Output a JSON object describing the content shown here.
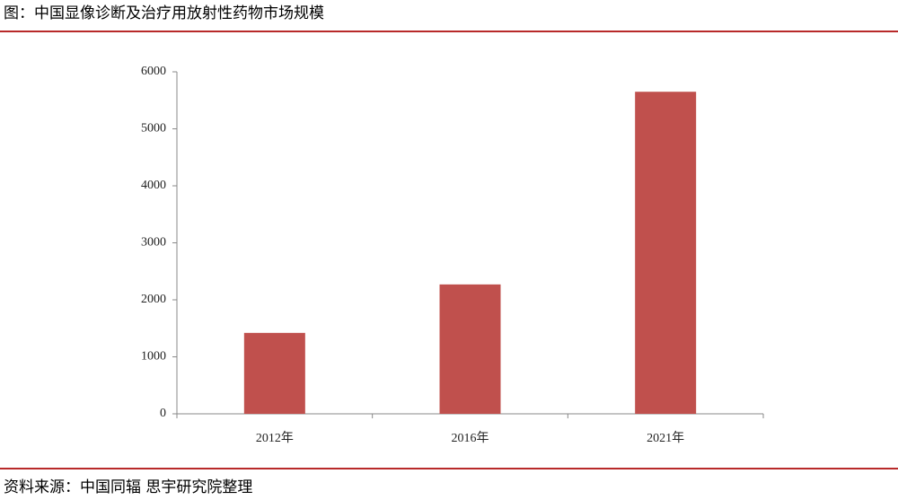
{
  "chart_data": {
    "type": "bar",
    "title": "图：中国显像诊断及治疗用放射性药物市场规模",
    "source": "资料来源：中国同辐 思宇研究院整理",
    "categories": [
      "2012年",
      "2016年",
      "2021年"
    ],
    "values": [
      1420,
      2270,
      5650
    ],
    "color": "#c0504d",
    "ylim": [
      0,
      6000
    ],
    "yticks": [
      0,
      1000,
      2000,
      3000,
      4000,
      5000,
      6000
    ],
    "grid": false
  }
}
